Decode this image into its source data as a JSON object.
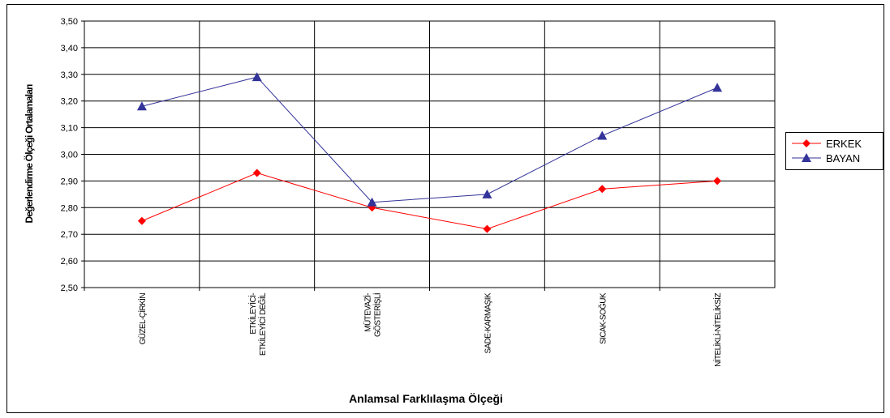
{
  "chart_data": {
    "type": "line",
    "x_label": "Anlamsal Farklılaşma Ölçeği",
    "y_label": "Değerlendirme Ölçeği Ortalamaları",
    "categories": [
      "GÜZEL-ÇİRKİN",
      "ETKİLEYİCİ-\nETKİLEYİCİ DEĞİL",
      "MÜTEVAZİ-\nGÖSTERİŞLİ",
      "SADE-KARMAŞIK",
      "SICAK-SOĞUK",
      "NİTELİKLİ-NİTELİKSİZ"
    ],
    "series": [
      {
        "name": "ERKEK",
        "color": "#ff0000",
        "marker": "diamond",
        "values": [
          2.75,
          2.93,
          2.8,
          2.72,
          2.87,
          2.9
        ]
      },
      {
        "name": "BAYAN",
        "color": "#333399",
        "marker": "triangle",
        "values": [
          3.18,
          3.29,
          2.82,
          2.85,
          3.07,
          3.25
        ]
      }
    ],
    "ylim": [
      2.5,
      3.5
    ],
    "yticks": [
      {
        "value": 2.5,
        "label": "2,50"
      },
      {
        "value": 2.6,
        "label": "2,60"
      },
      {
        "value": 2.7,
        "label": "2,70"
      },
      {
        "value": 2.8,
        "label": "2,80"
      },
      {
        "value": 2.9,
        "label": "2,90"
      },
      {
        "value": 3.0,
        "label": "3,00"
      },
      {
        "value": 3.1,
        "label": "3,10"
      },
      {
        "value": 3.2,
        "label": "3,20"
      },
      {
        "value": 3.3,
        "label": "3,30"
      },
      {
        "value": 3.4,
        "label": "3,40"
      },
      {
        "value": 3.5,
        "label": "3,50"
      }
    ],
    "grid": true,
    "legend": "right"
  }
}
